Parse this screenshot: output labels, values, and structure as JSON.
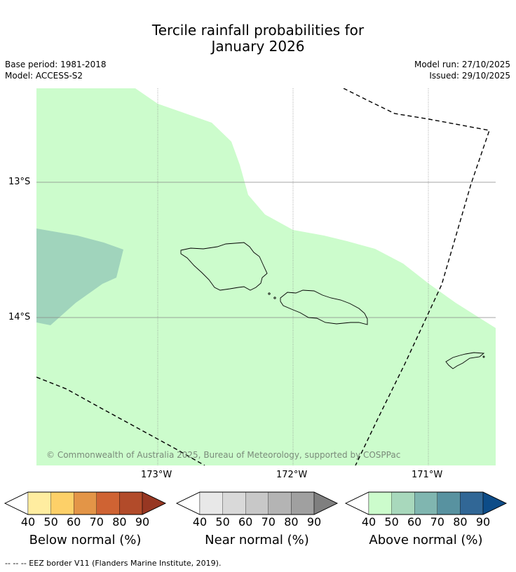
{
  "title": {
    "line1": "Tercile rainfall probabilities for",
    "line2": "January 2026"
  },
  "meta": {
    "base_period": "Base period: 1981-2018",
    "model": "Model: ACCESS-S2",
    "model_run": "Model run: 27/10/2025",
    "issued": "Issued: 29/10/2025"
  },
  "map": {
    "lat_labels": [
      "13°S",
      "14°S"
    ],
    "lon_labels": [
      "173°W",
      "172°W",
      "171°W"
    ],
    "credit": "© Commonwealth of Australia 2025, Bureau of Meteorology, supported by COSPPac",
    "regions": [
      {
        "category": "Above normal",
        "probability_band": "40-50",
        "color": "#ccfccc"
      },
      {
        "category": "Above normal",
        "probability_band": "50-60",
        "color": "#a0d4bc"
      }
    ]
  },
  "colorbars": [
    {
      "title": "Below normal (%)",
      "ticks": [
        "40",
        "50",
        "60",
        "70",
        "80",
        "90"
      ],
      "colors": [
        "#ffffff",
        "#ffeda0",
        "#fdd068",
        "#e39547",
        "#cf6333",
        "#b24b2a",
        "#973722"
      ]
    },
    {
      "title": "Near normal (%)",
      "ticks": [
        "40",
        "50",
        "60",
        "70",
        "80",
        "90"
      ],
      "colors": [
        "#ffffff",
        "#e8e8e8",
        "#d9d9d9",
        "#c8c8c8",
        "#b4b4b4",
        "#a0a0a0",
        "#7f7f7f"
      ]
    },
    {
      "title": "Above normal (%)",
      "ticks": [
        "40",
        "50",
        "60",
        "70",
        "80",
        "90"
      ],
      "colors": [
        "#ffffff",
        "#ccfccc",
        "#a8d8bc",
        "#80b6b0",
        "#5892a0",
        "#316796",
        "#0d4c88"
      ]
    }
  ],
  "footnote": "--  --  -- EEZ border V11 (Flanders Marine Institute, 2019)."
}
